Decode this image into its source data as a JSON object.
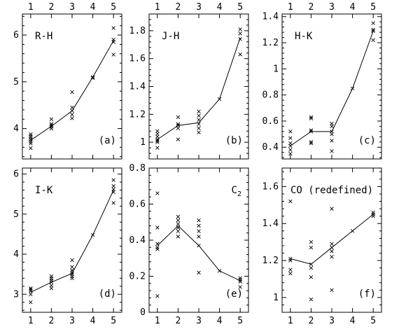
{
  "chart_data": [
    {
      "type": "scatter",
      "tag": "(a)",
      "title": "R-H",
      "title_sub": "",
      "xlim": [
        0.6,
        5.4
      ],
      "ylim": [
        3.35,
        6.45
      ],
      "x_ticks": [
        1,
        2,
        3,
        4,
        5
      ],
      "y_ticks": [
        4,
        5,
        6
      ],
      "top_tick_labels": true,
      "bottom_tick_labels": false,
      "mean_line": {
        "x": [
          1,
          2,
          3,
          4,
          5
        ],
        "y": [
          3.75,
          4.05,
          4.38,
          5.1,
          5.88
        ]
      },
      "points": [
        [
          1,
          3.58
        ],
        [
          1,
          3.68
        ],
        [
          1,
          3.72
        ],
        [
          1,
          3.76
        ],
        [
          1,
          3.8
        ],
        [
          1,
          3.84
        ],
        [
          1,
          3.88
        ],
        [
          2,
          4.0
        ],
        [
          2,
          4.04
        ],
        [
          2,
          4.07
        ],
        [
          2,
          4.1
        ],
        [
          2,
          4.2
        ],
        [
          3,
          4.22
        ],
        [
          3,
          4.3
        ],
        [
          3,
          4.38
        ],
        [
          3,
          4.45
        ],
        [
          3,
          4.78
        ],
        [
          4,
          5.08
        ],
        [
          4,
          5.1
        ],
        [
          5,
          5.58
        ],
        [
          5,
          5.85
        ],
        [
          5,
          5.9
        ],
        [
          5,
          6.15
        ]
      ]
    },
    {
      "type": "scatter",
      "tag": "(b)",
      "title": "J-H",
      "title_sub": "",
      "xlim": [
        0.6,
        5.4
      ],
      "ylim": [
        0.88,
        1.92
      ],
      "x_ticks": [
        1,
        2,
        3,
        4,
        5
      ],
      "y_ticks": [
        1,
        1.2,
        1.4,
        1.6,
        1.8
      ],
      "top_tick_labels": true,
      "bottom_tick_labels": false,
      "mean_line": {
        "x": [
          1,
          2,
          3,
          4,
          5
        ],
        "y": [
          1.02,
          1.12,
          1.14,
          1.31,
          1.75
        ]
      },
      "points": [
        [
          1,
          0.96
        ],
        [
          1,
          1.0
        ],
        [
          1,
          1.01
        ],
        [
          1,
          1.02
        ],
        [
          1,
          1.04
        ],
        [
          1,
          1.06
        ],
        [
          1,
          1.08
        ],
        [
          2,
          1.02
        ],
        [
          2,
          1.1
        ],
        [
          2,
          1.12
        ],
        [
          2,
          1.13
        ],
        [
          2,
          1.18
        ],
        [
          3,
          1.07
        ],
        [
          3,
          1.1
        ],
        [
          3,
          1.13
        ],
        [
          3,
          1.16
        ],
        [
          3,
          1.19
        ],
        [
          3,
          1.22
        ],
        [
          4,
          1.31
        ],
        [
          5,
          1.63
        ],
        [
          5,
          1.74
        ],
        [
          5,
          1.78
        ],
        [
          5,
          1.81
        ]
      ]
    },
    {
      "type": "scatter",
      "tag": "(c)",
      "title": "H-K",
      "title_sub": "",
      "xlim": [
        0.6,
        5.4
      ],
      "ylim": [
        0.31,
        1.42
      ],
      "x_ticks": [
        1,
        2,
        3,
        4,
        5
      ],
      "y_ticks": [
        0.4,
        0.6,
        0.8,
        1,
        1.2,
        1.4
      ],
      "top_tick_labels": true,
      "bottom_tick_labels": false,
      "mean_line": {
        "x": [
          1,
          2,
          3,
          4,
          5
        ],
        "y": [
          0.41,
          0.52,
          0.52,
          0.85,
          1.29
        ]
      },
      "points": [
        [
          1,
          0.35
        ],
        [
          1,
          0.38
        ],
        [
          1,
          0.41
        ],
        [
          1,
          0.43
        ],
        [
          1,
          0.47
        ],
        [
          1,
          0.52
        ],
        [
          2,
          0.43
        ],
        [
          2,
          0.44
        ],
        [
          2,
          0.52
        ],
        [
          2,
          0.53
        ],
        [
          2,
          0.62
        ],
        [
          2,
          0.63
        ],
        [
          3,
          0.37
        ],
        [
          3,
          0.45
        ],
        [
          3,
          0.5
        ],
        [
          3,
          0.52
        ],
        [
          3,
          0.56
        ],
        [
          3,
          0.58
        ],
        [
          4,
          0.85
        ],
        [
          5,
          1.22
        ],
        [
          5,
          1.29
        ],
        [
          5,
          1.3
        ],
        [
          5,
          1.35
        ]
      ]
    },
    {
      "type": "scatter",
      "tag": "(d)",
      "title": "I-K",
      "title_sub": "",
      "xlim": [
        0.6,
        5.4
      ],
      "ylim": [
        2.55,
        6.15
      ],
      "x_ticks": [
        1,
        2,
        3,
        4,
        5
      ],
      "y_ticks": [
        3,
        4,
        5,
        6
      ],
      "top_tick_labels": false,
      "bottom_tick_labels": true,
      "mean_line": {
        "x": [
          1,
          2,
          3,
          4,
          5
        ],
        "y": [
          3.05,
          3.3,
          3.52,
          4.48,
          5.6
        ]
      },
      "points": [
        [
          1,
          2.8
        ],
        [
          1,
          3.0
        ],
        [
          1,
          3.08
        ],
        [
          1,
          3.12
        ],
        [
          1,
          3.15
        ],
        [
          2,
          3.15
        ],
        [
          2,
          3.22
        ],
        [
          2,
          3.3
        ],
        [
          2,
          3.35
        ],
        [
          2,
          3.4
        ],
        [
          2,
          3.45
        ],
        [
          3,
          3.4
        ],
        [
          3,
          3.45
        ],
        [
          3,
          3.5
        ],
        [
          3,
          3.55
        ],
        [
          3,
          3.6
        ],
        [
          3,
          3.68
        ],
        [
          3,
          3.85
        ],
        [
          4,
          4.48
        ],
        [
          5,
          5.28
        ],
        [
          5,
          5.55
        ],
        [
          5,
          5.62
        ],
        [
          5,
          5.7
        ],
        [
          5,
          5.85
        ]
      ]
    },
    {
      "type": "scatter",
      "tag": "(e)",
      "title": "C",
      "title_sub": "2",
      "xlim": [
        0.6,
        5.4
      ],
      "ylim": [
        0,
        0.8
      ],
      "x_ticks": [
        1,
        2,
        3,
        4,
        5
      ],
      "y_ticks": [
        0,
        0.2,
        0.4,
        0.6,
        0.8
      ],
      "top_tick_labels": false,
      "bottom_tick_labels": true,
      "mean_line": {
        "x": [
          1,
          2,
          3,
          4,
          5
        ],
        "y": [
          0.37,
          0.48,
          0.37,
          0.23,
          0.175
        ]
      },
      "points": [
        [
          1,
          0.09
        ],
        [
          1,
          0.35
        ],
        [
          1,
          0.36
        ],
        [
          1,
          0.38
        ],
        [
          1,
          0.47
        ],
        [
          1,
          0.66
        ],
        [
          2,
          0.42
        ],
        [
          2,
          0.45
        ],
        [
          2,
          0.47
        ],
        [
          2,
          0.49
        ],
        [
          2,
          0.51
        ],
        [
          2,
          0.53
        ],
        [
          3,
          0.22
        ],
        [
          3,
          0.37
        ],
        [
          3,
          0.42
        ],
        [
          3,
          0.45
        ],
        [
          3,
          0.48
        ],
        [
          3,
          0.51
        ],
        [
          4,
          0.23
        ],
        [
          5,
          0.14
        ],
        [
          5,
          0.17
        ],
        [
          5,
          0.18
        ],
        [
          5,
          0.19
        ]
      ]
    },
    {
      "type": "scatter",
      "tag": "(f)",
      "title": "CO (redefined)",
      "title_sub": "",
      "xlim": [
        0.6,
        5.4
      ],
      "ylim": [
        0.92,
        1.7
      ],
      "x_ticks": [
        1,
        2,
        3,
        4,
        5
      ],
      "y_ticks": [
        1,
        1.2,
        1.4,
        1.6
      ],
      "top_tick_labels": false,
      "bottom_tick_labels": true,
      "mean_line": {
        "x": [
          1,
          2,
          3,
          4,
          5
        ],
        "y": [
          1.21,
          1.18,
          1.27,
          1.36,
          1.45
        ]
      },
      "points": [
        [
          1,
          1.13
        ],
        [
          1,
          1.15
        ],
        [
          1,
          1.2
        ],
        [
          1,
          1.21
        ],
        [
          1,
          1.52
        ],
        [
          2,
          0.99
        ],
        [
          2,
          1.11
        ],
        [
          2,
          1.16
        ],
        [
          2,
          1.18
        ],
        [
          2,
          1.27
        ],
        [
          2,
          1.3
        ],
        [
          3,
          1.04
        ],
        [
          3,
          1.22
        ],
        [
          3,
          1.25
        ],
        [
          3,
          1.27
        ],
        [
          3,
          1.29
        ],
        [
          3,
          1.48
        ],
        [
          4,
          1.36
        ],
        [
          5,
          1.44
        ],
        [
          5,
          1.45
        ],
        [
          5,
          1.46
        ]
      ]
    }
  ]
}
